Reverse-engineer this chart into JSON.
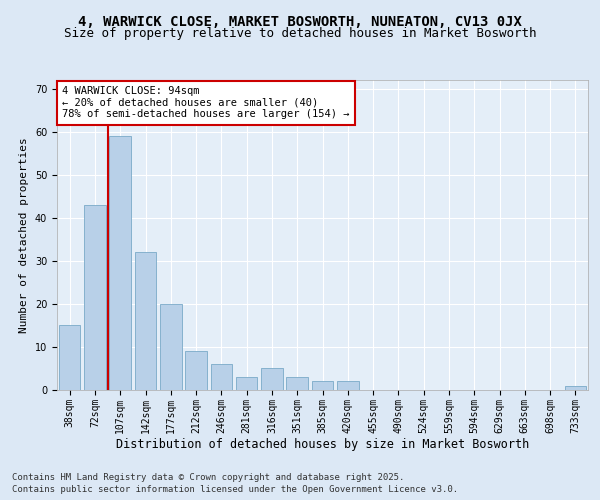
{
  "title1": "4, WARWICK CLOSE, MARKET BOSWORTH, NUNEATON, CV13 0JX",
  "title2": "Size of property relative to detached houses in Market Bosworth",
  "xlabel": "Distribution of detached houses by size in Market Bosworth",
  "ylabel": "Number of detached properties",
  "categories": [
    "38sqm",
    "72sqm",
    "107sqm",
    "142sqm",
    "177sqm",
    "212sqm",
    "246sqm",
    "281sqm",
    "316sqm",
    "351sqm",
    "385sqm",
    "420sqm",
    "455sqm",
    "490sqm",
    "524sqm",
    "559sqm",
    "594sqm",
    "629sqm",
    "663sqm",
    "698sqm",
    "733sqm"
  ],
  "values": [
    15,
    43,
    59,
    32,
    20,
    9,
    6,
    3,
    5,
    3,
    2,
    2,
    0,
    0,
    0,
    0,
    0,
    0,
    0,
    0,
    1
  ],
  "bar_color": "#b8d0e8",
  "bar_edgecolor": "#7aaac8",
  "vline_x": 1.5,
  "vline_color": "#cc0000",
  "annotation_text": "4 WARWICK CLOSE: 94sqm\n← 20% of detached houses are smaller (40)\n78% of semi-detached houses are larger (154) →",
  "annotation_box_color": "#cc0000",
  "ylim": [
    0,
    72
  ],
  "yticks": [
    0,
    10,
    20,
    30,
    40,
    50,
    60,
    70
  ],
  "footer1": "Contains HM Land Registry data © Crown copyright and database right 2025.",
  "footer2": "Contains public sector information licensed under the Open Government Licence v3.0.",
  "bg_color": "#dce8f5",
  "plot_bg_color": "#e4eef8",
  "title1_fontsize": 10,
  "title2_fontsize": 9,
  "xlabel_fontsize": 8.5,
  "ylabel_fontsize": 8,
  "tick_fontsize": 7,
  "footer_fontsize": 6.5,
  "ann_fontsize": 7.5
}
